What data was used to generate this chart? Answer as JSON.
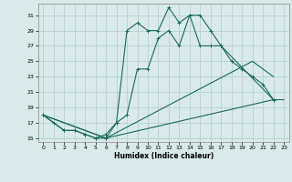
{
  "title": "",
  "xlabel": "Humidex (Indice chaleur)",
  "bg_color": "#daeaea",
  "grid_color": "#b0cccc",
  "line_color": "#1a6b5a",
  "xlim": [
    -0.5,
    23.5
  ],
  "ylim": [
    14.5,
    32.5
  ],
  "xticks": [
    0,
    1,
    2,
    3,
    4,
    5,
    6,
    7,
    8,
    9,
    10,
    11,
    12,
    13,
    14,
    15,
    16,
    17,
    18,
    19,
    20,
    21,
    22,
    23
  ],
  "yticks": [
    15,
    17,
    19,
    21,
    23,
    25,
    27,
    29,
    31
  ],
  "curves": [
    {
      "x": [
        0,
        1,
        2,
        3,
        4,
        5,
        6,
        7,
        8,
        9,
        10,
        11,
        12,
        13,
        14,
        15,
        16,
        17,
        22
      ],
      "y": [
        18,
        17,
        16,
        16,
        15.5,
        15,
        15,
        17,
        29,
        30,
        29,
        29,
        32,
        30,
        31,
        31,
        29,
        27,
        20
      ],
      "marker": true
    },
    {
      "x": [
        0,
        2,
        3,
        4,
        5,
        6,
        7,
        8,
        9,
        10,
        11,
        12,
        13,
        14,
        15,
        16,
        17,
        18,
        19,
        20,
        21,
        22
      ],
      "y": [
        18,
        16,
        16,
        15.5,
        15,
        15.5,
        17,
        18,
        24,
        24,
        28,
        29,
        27,
        31,
        27,
        27,
        27,
        25,
        24,
        23,
        22,
        20
      ],
      "marker": true
    },
    {
      "x": [
        0,
        6,
        20,
        22
      ],
      "y": [
        18,
        15,
        25,
        23
      ],
      "marker": false
    },
    {
      "x": [
        0,
        6,
        22,
        23
      ],
      "y": [
        18,
        15,
        20,
        20
      ],
      "marker": false
    }
  ]
}
